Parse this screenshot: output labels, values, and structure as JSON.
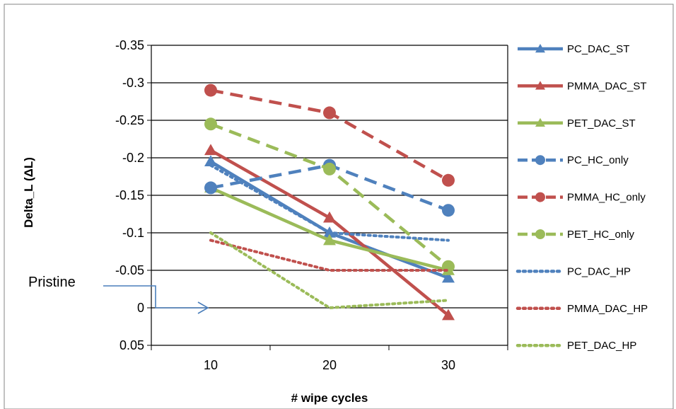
{
  "chart_data": {
    "type": "line",
    "title": "",
    "xlabel": "# wipe cycles",
    "ylabel": "Delta_L (ΔL)",
    "x": [
      10,
      20,
      30
    ],
    "y_ticks": [
      "-0.35",
      "-0.3",
      "-0.25",
      "-0.2",
      "-0.15",
      "-0.1",
      "-0.05",
      "0",
      "0.05"
    ],
    "y_tick_values": [
      -0.35,
      -0.3,
      -0.25,
      -0.2,
      -0.15,
      -0.1,
      -0.05,
      0,
      0.05
    ],
    "x_tick_labels": [
      "10",
      "20",
      "30"
    ],
    "ylim": [
      0.05,
      -0.35
    ],
    "y_axis_reversed": true,
    "grid": "horizontal major gridlines",
    "legend_position": "right",
    "annotation": {
      "text": "Pristine",
      "y": 0
    },
    "series": [
      {
        "name": "PC_DAC_ST",
        "color": "#4F81BD",
        "dash": "solid",
        "marker": "triangle",
        "values": [
          -0.195,
          -0.1,
          -0.04
        ]
      },
      {
        "name": "PMMA_DAC_ST",
        "color": "#C0504D",
        "dash": "solid",
        "marker": "triangle",
        "values": [
          -0.21,
          -0.12,
          0.01
        ]
      },
      {
        "name": "PET_DAC_ST",
        "color": "#9BBB59",
        "dash": "solid",
        "marker": "triangle",
        "values": [
          -0.16,
          -0.09,
          -0.05
        ]
      },
      {
        "name": "PC_HC_only",
        "color": "#4F81BD",
        "dash": "dash",
        "marker": "circle",
        "values": [
          -0.16,
          -0.19,
          -0.13
        ]
      },
      {
        "name": "PMMA_HC_only",
        "color": "#C0504D",
        "dash": "dash",
        "marker": "circle",
        "values": [
          -0.29,
          -0.26,
          -0.17
        ]
      },
      {
        "name": "PET_HC_only",
        "color": "#9BBB59",
        "dash": "dash",
        "marker": "circle",
        "values": [
          -0.245,
          -0.185,
          -0.055
        ]
      },
      {
        "name": "PC_DAC_HP",
        "color": "#4F81BD",
        "dash": "dot",
        "marker": "none",
        "values": [
          -0.19,
          -0.1,
          -0.09
        ]
      },
      {
        "name": "PMMA_DAC_HP",
        "color": "#C0504D",
        "dash": "dot",
        "marker": "none",
        "values": [
          -0.09,
          -0.05,
          -0.05
        ]
      },
      {
        "name": "PET_DAC_HP",
        "color": "#9BBB59",
        "dash": "dot",
        "marker": "none",
        "values": [
          -0.1,
          0.0,
          -0.01
        ]
      }
    ]
  }
}
